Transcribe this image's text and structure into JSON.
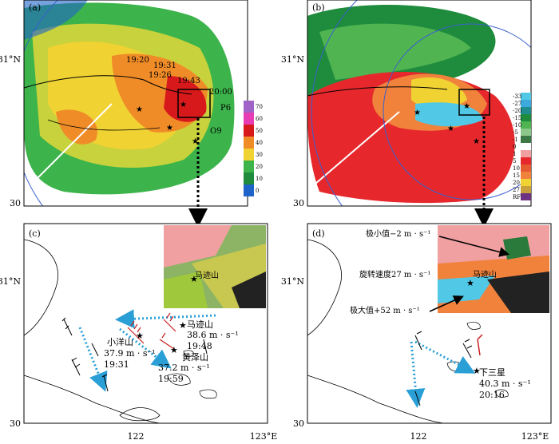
{
  "axes": {
    "lat": [
      "31°N",
      "30"
    ],
    "lon": [
      "122",
      "123°E"
    ]
  },
  "panels": [
    {
      "label": "(a)",
      "annotations": [
        "19:20",
        "19:31",
        "19:26",
        "19:43",
        "20:00",
        "P6",
        "O9"
      ],
      "colorbar": [
        "70",
        "60",
        "50",
        "40",
        "30",
        "20",
        "10",
        "0"
      ]
    },
    {
      "label": "(b)",
      "colorbar": [
        "-33",
        "-27",
        "-20",
        "-15",
        "-10",
        "-5",
        "-1",
        "0",
        "1",
        "5",
        "10",
        "15",
        "20",
        "27",
        "RF"
      ]
    },
    {
      "label": "(c)",
      "inset_label": "马迹山",
      "stations": [
        {
          "name": "小洋山",
          "speed": "37.9 m · s⁻¹",
          "time": "19:31"
        },
        {
          "name": "马迹山",
          "speed": "38.6 m · s⁻¹",
          "time": "19:48"
        },
        {
          "name": "黄泽山",
          "speed": "37.2 m · s⁻¹",
          "time": "19:59"
        }
      ]
    },
    {
      "label": "(d)",
      "inset_label": "马迹山",
      "notes": [
        "极小值−2 m · s⁻¹",
        "旋转速度27 m · s⁻¹",
        "极大值+52 m · s⁻¹"
      ],
      "stations": [
        {
          "name": "下三星",
          "speed": "40.3 m · s⁻¹",
          "time": "20:16"
        }
      ]
    }
  ]
}
